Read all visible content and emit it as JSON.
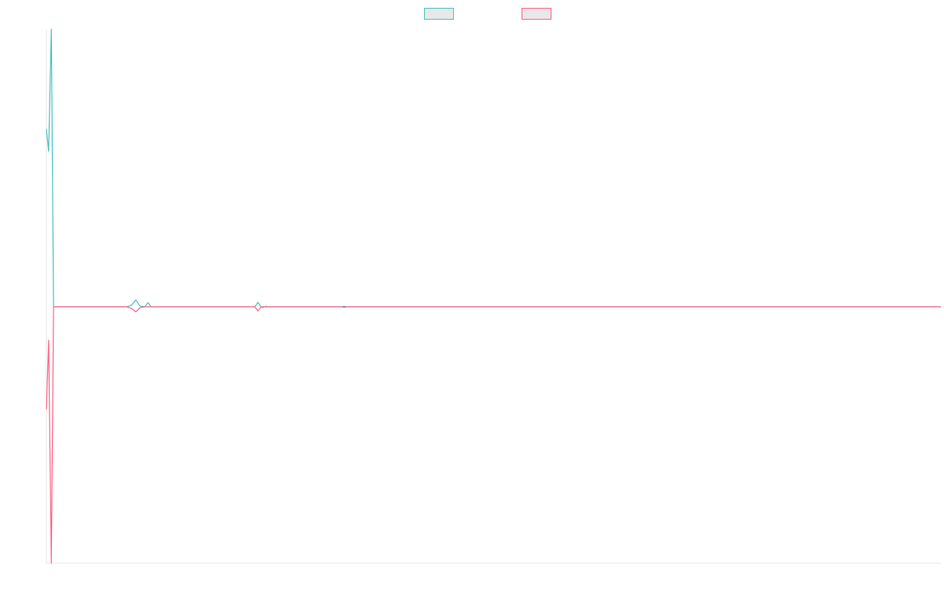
{
  "chart_data": {
    "type": "line",
    "x_range": [
      0,
      1
    ],
    "y_range": [
      -1,
      1
    ],
    "grid": false,
    "legend_placement": "top-center",
    "series": [
      {
        "color": "#4bc0c0",
        "points": [
          [
            0.0,
            0.64
          ],
          [
            0.0025,
            0.56
          ],
          [
            0.0055,
            1.0
          ],
          [
            0.008,
            0.0
          ],
          [
            0.09,
            0.0
          ],
          [
            0.0955,
            0.007
          ],
          [
            0.1,
            0.025
          ],
          [
            0.1045,
            0.003
          ],
          [
            0.11,
            0.0
          ],
          [
            0.1135,
            0.015
          ],
          [
            0.117,
            0.0
          ],
          [
            0.233,
            0.0
          ],
          [
            0.2365,
            0.016
          ],
          [
            0.24,
            0.0
          ],
          [
            0.242,
            -0.003
          ],
          [
            0.245,
            0.002
          ],
          [
            0.248,
            0.0
          ],
          [
            0.33,
            0.0
          ],
          [
            0.333,
            0.002
          ],
          [
            0.336,
            0.0
          ],
          [
            1.0,
            0.0
          ]
        ]
      },
      {
        "color": "#ff6384",
        "points": [
          [
            0.0,
            -0.4
          ],
          [
            0.0025,
            -0.13
          ],
          [
            0.0055,
            -1.0
          ],
          [
            0.008,
            0.0
          ],
          [
            0.09,
            0.0
          ],
          [
            0.0955,
            -0.007
          ],
          [
            0.1,
            -0.02
          ],
          [
            0.1045,
            -0.003
          ],
          [
            0.11,
            0.0
          ],
          [
            0.233,
            0.0
          ],
          [
            0.2365,
            -0.016
          ],
          [
            0.24,
            0.0
          ],
          [
            0.33,
            0.0
          ],
          [
            0.333,
            -0.002
          ],
          [
            0.336,
            0.0
          ],
          [
            1.0,
            0.0
          ]
        ]
      }
    ]
  }
}
